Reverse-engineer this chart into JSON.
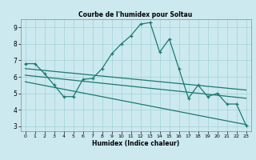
{
  "title": "Courbe de l'humidex pour Soltau",
  "xlabel": "Humidex (Indice chaleur)",
  "background_color": "#cce9f0",
  "grid_color": "#aad4dc",
  "line_color": "#1a7a6e",
  "xlim": [
    -0.5,
    23.5
  ],
  "ylim": [
    2.7,
    9.5
  ],
  "yticks": [
    3,
    4,
    5,
    6,
    7,
    8,
    9
  ],
  "xticks": [
    0,
    1,
    2,
    3,
    4,
    5,
    6,
    7,
    8,
    9,
    10,
    11,
    12,
    13,
    14,
    15,
    16,
    17,
    18,
    19,
    20,
    21,
    22,
    23
  ],
  "series1_x": [
    0,
    1,
    2,
    3,
    4,
    5,
    6,
    7,
    8,
    9,
    10,
    11,
    12,
    13,
    14,
    15,
    16,
    17,
    18,
    19,
    20,
    21,
    22,
    23
  ],
  "series1_y": [
    6.8,
    6.8,
    6.2,
    5.5,
    4.8,
    4.8,
    5.85,
    5.9,
    6.5,
    7.4,
    8.0,
    8.5,
    9.2,
    9.3,
    7.5,
    8.3,
    6.5,
    4.7,
    5.5,
    4.8,
    5.0,
    4.35,
    4.35,
    3.05
  ],
  "trend1_x": [
    0,
    23
  ],
  "trend1_y": [
    6.5,
    5.2
  ],
  "trend2_x": [
    0,
    23
  ],
  "trend2_y": [
    6.1,
    4.7
  ],
  "trend3_x": [
    0,
    23
  ],
  "trend3_y": [
    5.7,
    3.1
  ]
}
